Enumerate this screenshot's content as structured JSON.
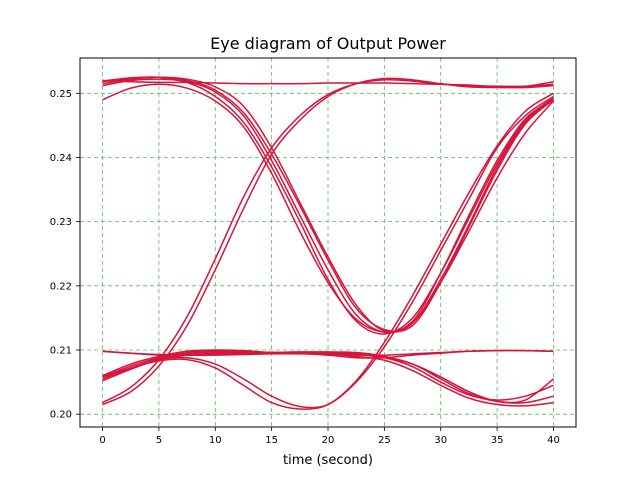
{
  "chart_data": {
    "type": "line",
    "title": "Eye diagram of Output Power",
    "xlabel": "time (second)",
    "ylabel": "",
    "xlim": [
      -2,
      42
    ],
    "ylim": [
      0.198,
      0.2555
    ],
    "xticks": [
      0,
      5,
      10,
      15,
      20,
      25,
      30,
      35,
      40
    ],
    "yticks": [
      0.2,
      0.21,
      0.22,
      0.23,
      0.24,
      0.25
    ],
    "ytick_labels": [
      "0.20",
      "0.21",
      "0.22",
      "0.23",
      "0.24",
      "0.25"
    ],
    "grid": true,
    "grid_color": "#5cb85c",
    "line_color": "#d6143c",
    "x": [
      0,
      2.5,
      5,
      7.5,
      10,
      12.5,
      15,
      17.5,
      20,
      22.5,
      25,
      27.5,
      30,
      32.5,
      35,
      37.5,
      40
    ],
    "series": [
      {
        "values": [
          0.2515,
          0.2522,
          0.2525,
          0.2522,
          0.251,
          0.248,
          0.2415,
          0.233,
          0.2245,
          0.217,
          0.213,
          0.2145,
          0.222,
          0.231,
          0.2395,
          0.246,
          0.249
        ]
      },
      {
        "values": [
          0.2512,
          0.252,
          0.2522,
          0.2518,
          0.2502,
          0.2465,
          0.2395,
          0.231,
          0.2225,
          0.2155,
          0.2128,
          0.2142,
          0.221,
          0.2295,
          0.2385,
          0.2455,
          0.2492
        ]
      },
      {
        "values": [
          0.2518,
          0.2523,
          0.2525,
          0.252,
          0.2505,
          0.247,
          0.2405,
          0.2325,
          0.224,
          0.2165,
          0.2132,
          0.2138,
          0.2205,
          0.2292,
          0.238,
          0.2452,
          0.249
        ]
      },
      {
        "values": [
          0.2519,
          0.2524,
          0.2525,
          0.2517,
          0.2495,
          0.2455,
          0.2385,
          0.23,
          0.221,
          0.2145,
          0.2125,
          0.215,
          0.222,
          0.2305,
          0.239,
          0.2458,
          0.2493
        ]
      },
      {
        "values": [
          0.249,
          0.2508,
          0.2514,
          0.2508,
          0.2488,
          0.2448,
          0.2375,
          0.2285,
          0.2205,
          0.2148,
          0.2128,
          0.2142,
          0.2205,
          0.2285,
          0.2368,
          0.2438,
          0.2488
        ]
      },
      {
        "values": [
          0.252,
          0.2518,
          0.2517,
          0.2517,
          0.2516,
          0.2515,
          0.2515,
          0.2515,
          0.2516,
          0.2516,
          0.2516,
          0.2515,
          0.2514,
          0.2512,
          0.2511,
          0.2511,
          0.2514
        ]
      },
      {
        "values": [
          0.2018,
          0.2042,
          0.2085,
          0.2152,
          0.2242,
          0.2338,
          0.2415,
          0.2465,
          0.2498,
          0.2515,
          0.2521,
          0.2519,
          0.2514,
          0.2513,
          0.251,
          0.2511,
          0.2518
        ]
      },
      {
        "values": [
          0.2015,
          0.2035,
          0.2075,
          0.2138,
          0.2225,
          0.232,
          0.2405,
          0.2458,
          0.2495,
          0.2515,
          0.2523,
          0.2521,
          0.2515,
          0.251,
          0.2509,
          0.2509,
          0.2512
        ]
      },
      {
        "values": [
          0.2055,
          0.2072,
          0.2085,
          0.2088,
          0.2078,
          0.2055,
          0.2028,
          0.2012,
          0.2015,
          0.205,
          0.2105,
          0.2175,
          0.2255,
          0.2335,
          0.2415,
          0.2465,
          0.2495
        ]
      },
      {
        "values": [
          0.2058,
          0.2072,
          0.2083,
          0.2085,
          0.2072,
          0.2045,
          0.2018,
          0.2008,
          0.2015,
          0.2052,
          0.2112,
          0.2185,
          0.2265,
          0.2345,
          0.2418,
          0.2472,
          0.25
        ]
      },
      {
        "values": [
          0.2098,
          0.2095,
          0.2093,
          0.2092,
          0.2092,
          0.2093,
          0.2094,
          0.2094,
          0.2093,
          0.2092,
          0.2092,
          0.2094,
          0.2096,
          0.2098,
          0.2099,
          0.2099,
          0.2098
        ]
      },
      {
        "values": [
          0.206,
          0.2078,
          0.209,
          0.2098,
          0.21,
          0.2099,
          0.2096,
          0.2095,
          0.2095,
          0.2093,
          0.2088,
          0.2078,
          0.2058,
          0.2035,
          0.202,
          0.2018,
          0.2028
        ]
      },
      {
        "values": [
          0.2058,
          0.2075,
          0.2088,
          0.2096,
          0.2099,
          0.2098,
          0.2096,
          0.2095,
          0.2094,
          0.209,
          0.2084,
          0.2068,
          0.2045,
          0.2025,
          0.2015,
          0.2013,
          0.2018
        ]
      },
      {
        "values": [
          0.2055,
          0.2072,
          0.2086,
          0.2094,
          0.2097,
          0.2097,
          0.2096,
          0.2096,
          0.2096,
          0.2094,
          0.2088,
          0.2074,
          0.205,
          0.203,
          0.2022,
          0.2028,
          0.2045
        ]
      },
      {
        "values": [
          0.2052,
          0.207,
          0.2085,
          0.2092,
          0.2095,
          0.2095,
          0.2096,
          0.2097,
          0.2097,
          0.2096,
          0.209,
          0.2078,
          0.2055,
          0.2032,
          0.202,
          0.2022,
          0.2055
        ]
      },
      {
        "values": [
          0.2098,
          0.2095,
          0.2092,
          0.2092,
          0.2093,
          0.2095,
          0.2096,
          0.2095,
          0.2092,
          0.2088,
          0.2088,
          0.2092,
          0.2095,
          0.2098,
          0.2099,
          0.2099,
          0.2098
        ]
      }
    ]
  }
}
